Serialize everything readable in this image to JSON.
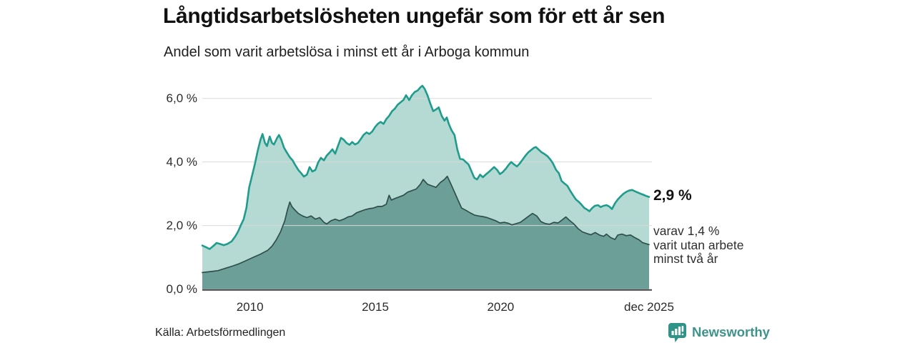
{
  "header": {
    "title": "Långtidsarbetslösheten ungefär som för ett år sen",
    "subtitle": "Andel som varit arbetslösa i minst ett år i Arboga kommun"
  },
  "annotations": {
    "total_value": "2,9 %",
    "subset_line1": "varav 1,4 %",
    "subset_line2": "varit utan arbete",
    "subset_line3": "minst två år"
  },
  "footer": {
    "source": "Källa: Arbetsförmedlingen",
    "brand": "Newsworthy",
    "brand_icon": "newsworthy-speech-bubble-bar-chart-icon"
  },
  "colors": {
    "accent_teal": "#1f9c8c",
    "light_fill": "#b5d9d3",
    "dark_fill": "#6d9f99",
    "dark_line": "#2f4f4b",
    "grid": "#d9d9d9",
    "axis_line": "#454545",
    "brand": "#3e948b",
    "text": "#111111"
  },
  "chart_data": {
    "type": "area",
    "title": "Långtidsarbetslösheten ungefär som för ett år sen",
    "subtitle": "Andel som varit arbetslösa i minst ett år i Arboga kommun",
    "unit": "%",
    "grid": true,
    "x_axis": {
      "min": 2008.1,
      "max": 2025.92,
      "ticks": [
        {
          "year": 2010,
          "label": "2010"
        },
        {
          "year": 2015,
          "label": "2015"
        },
        {
          "year": 2020,
          "label": "2020"
        },
        {
          "year": 2025.92,
          "label": "dec 2025"
        }
      ]
    },
    "y_axis": {
      "min": 0,
      "max": 6.5,
      "ticks": [
        {
          "value": 0,
          "label": "0,0 %"
        },
        {
          "value": 2,
          "label": "2,0 %"
        },
        {
          "value": 4,
          "label": "4,0 %"
        },
        {
          "value": 6,
          "label": "6,0 %"
        }
      ]
    },
    "series": [
      {
        "name": "Andel arbetslösa minst ett år",
        "end_label": "2,9 %",
        "line_color": "#1f9c8c",
        "fill_color": "#b5d9d3",
        "line_width": 2.6,
        "points": [
          [
            2008.1,
            1.37
          ],
          [
            2008.24,
            1.32
          ],
          [
            2008.39,
            1.26
          ],
          [
            2008.53,
            1.35
          ],
          [
            2008.67,
            1.45
          ],
          [
            2008.81,
            1.42
          ],
          [
            2008.95,
            1.38
          ],
          [
            2009.1,
            1.42
          ],
          [
            2009.27,
            1.5
          ],
          [
            2009.41,
            1.65
          ],
          [
            2009.52,
            1.8
          ],
          [
            2009.63,
            2.0
          ],
          [
            2009.75,
            2.2
          ],
          [
            2009.86,
            2.55
          ],
          [
            2009.97,
            3.2
          ],
          [
            2010.08,
            3.55
          ],
          [
            2010.2,
            3.95
          ],
          [
            2010.31,
            4.35
          ],
          [
            2010.42,
            4.7
          ],
          [
            2010.5,
            4.88
          ],
          [
            2010.6,
            4.6
          ],
          [
            2010.68,
            4.5
          ],
          [
            2010.79,
            4.8
          ],
          [
            2010.88,
            4.6
          ],
          [
            2010.96,
            4.55
          ],
          [
            2011.08,
            4.75
          ],
          [
            2011.16,
            4.85
          ],
          [
            2011.25,
            4.7
          ],
          [
            2011.36,
            4.45
          ],
          [
            2011.47,
            4.3
          ],
          [
            2011.59,
            4.15
          ],
          [
            2011.7,
            4.05
          ],
          [
            2011.81,
            3.9
          ],
          [
            2011.93,
            3.75
          ],
          [
            2012.04,
            3.65
          ],
          [
            2012.15,
            3.54
          ],
          [
            2012.27,
            3.6
          ],
          [
            2012.38,
            3.84
          ],
          [
            2012.49,
            3.7
          ],
          [
            2012.61,
            3.75
          ],
          [
            2012.72,
            3.98
          ],
          [
            2012.83,
            4.13
          ],
          [
            2012.95,
            4.05
          ],
          [
            2013.06,
            4.2
          ],
          [
            2013.17,
            4.29
          ],
          [
            2013.29,
            4.4
          ],
          [
            2013.4,
            4.26
          ],
          [
            2013.51,
            4.5
          ],
          [
            2013.63,
            4.76
          ],
          [
            2013.74,
            4.7
          ],
          [
            2013.85,
            4.6
          ],
          [
            2013.97,
            4.54
          ],
          [
            2014.08,
            4.63
          ],
          [
            2014.19,
            4.55
          ],
          [
            2014.31,
            4.6
          ],
          [
            2014.42,
            4.72
          ],
          [
            2014.53,
            4.85
          ],
          [
            2014.65,
            4.93
          ],
          [
            2014.76,
            4.88
          ],
          [
            2014.87,
            4.95
          ],
          [
            2014.99,
            5.1
          ],
          [
            2015.1,
            5.2
          ],
          [
            2015.21,
            5.26
          ],
          [
            2015.33,
            5.2
          ],
          [
            2015.44,
            5.35
          ],
          [
            2015.55,
            5.45
          ],
          [
            2015.67,
            5.6
          ],
          [
            2015.78,
            5.68
          ],
          [
            2015.89,
            5.8
          ],
          [
            2016.01,
            5.88
          ],
          [
            2016.12,
            5.95
          ],
          [
            2016.23,
            6.1
          ],
          [
            2016.35,
            5.95
          ],
          [
            2016.46,
            6.1
          ],
          [
            2016.57,
            6.2
          ],
          [
            2016.69,
            6.25
          ],
          [
            2016.8,
            6.35
          ],
          [
            2016.88,
            6.4
          ],
          [
            2016.97,
            6.3
          ],
          [
            2017.08,
            6.1
          ],
          [
            2017.19,
            5.85
          ],
          [
            2017.31,
            5.6
          ],
          [
            2017.42,
            5.65
          ],
          [
            2017.53,
            5.72
          ],
          [
            2017.65,
            5.45
          ],
          [
            2017.76,
            5.3
          ],
          [
            2017.85,
            5.4
          ],
          [
            2017.93,
            5.2
          ],
          [
            2018.04,
            5.0
          ],
          [
            2018.16,
            4.85
          ],
          [
            2018.27,
            4.4
          ],
          [
            2018.38,
            4.1
          ],
          [
            2018.5,
            4.08
          ],
          [
            2018.61,
            4.0
          ],
          [
            2018.72,
            3.92
          ],
          [
            2018.84,
            3.7
          ],
          [
            2018.95,
            3.5
          ],
          [
            2019.06,
            3.45
          ],
          [
            2019.18,
            3.6
          ],
          [
            2019.29,
            3.52
          ],
          [
            2019.4,
            3.6
          ],
          [
            2019.52,
            3.68
          ],
          [
            2019.63,
            3.76
          ],
          [
            2019.74,
            3.84
          ],
          [
            2019.86,
            3.75
          ],
          [
            2019.97,
            3.62
          ],
          [
            2020.08,
            3.68
          ],
          [
            2020.2,
            3.78
          ],
          [
            2020.31,
            3.9
          ],
          [
            2020.42,
            4.0
          ],
          [
            2020.54,
            3.92
          ],
          [
            2020.65,
            3.86
          ],
          [
            2020.76,
            3.95
          ],
          [
            2020.88,
            4.08
          ],
          [
            2020.99,
            4.2
          ],
          [
            2021.1,
            4.3
          ],
          [
            2021.22,
            4.38
          ],
          [
            2021.33,
            4.45
          ],
          [
            2021.41,
            4.47
          ],
          [
            2021.53,
            4.38
          ],
          [
            2021.64,
            4.3
          ],
          [
            2021.75,
            4.25
          ],
          [
            2021.87,
            4.18
          ],
          [
            2021.98,
            4.08
          ],
          [
            2022.09,
            3.95
          ],
          [
            2022.21,
            3.75
          ],
          [
            2022.32,
            3.65
          ],
          [
            2022.43,
            3.4
          ],
          [
            2022.55,
            3.32
          ],
          [
            2022.66,
            3.25
          ],
          [
            2022.77,
            3.1
          ],
          [
            2022.89,
            2.95
          ],
          [
            2023.0,
            2.82
          ],
          [
            2023.11,
            2.75
          ],
          [
            2023.23,
            2.65
          ],
          [
            2023.34,
            2.55
          ],
          [
            2023.45,
            2.5
          ],
          [
            2023.54,
            2.45
          ],
          [
            2023.65,
            2.55
          ],
          [
            2023.76,
            2.62
          ],
          [
            2023.88,
            2.64
          ],
          [
            2023.99,
            2.58
          ],
          [
            2024.1,
            2.62
          ],
          [
            2024.22,
            2.64
          ],
          [
            2024.33,
            2.6
          ],
          [
            2024.44,
            2.52
          ],
          [
            2024.56,
            2.7
          ],
          [
            2024.67,
            2.82
          ],
          [
            2024.79,
            2.92
          ],
          [
            2024.9,
            3.0
          ],
          [
            2025.01,
            3.06
          ],
          [
            2025.12,
            3.1
          ],
          [
            2025.24,
            3.12
          ],
          [
            2025.35,
            3.08
          ],
          [
            2025.46,
            3.04
          ],
          [
            2025.58,
            3.0
          ],
          [
            2025.69,
            2.97
          ],
          [
            2025.8,
            2.93
          ],
          [
            2025.92,
            2.9
          ]
        ]
      },
      {
        "name": "varav utan arbete minst två år",
        "end_label": "1,4 %",
        "line_color": "#2f4f4b",
        "fill_color": "#6d9f99",
        "line_width": 1.7,
        "points": [
          [
            2008.1,
            0.52
          ],
          [
            2008.44,
            0.55
          ],
          [
            2008.73,
            0.58
          ],
          [
            2009.01,
            0.65
          ],
          [
            2009.29,
            0.72
          ],
          [
            2009.58,
            0.8
          ],
          [
            2009.86,
            0.9
          ],
          [
            2010.14,
            1.0
          ],
          [
            2010.42,
            1.1
          ],
          [
            2010.71,
            1.22
          ],
          [
            2010.88,
            1.35
          ],
          [
            2011.05,
            1.55
          ],
          [
            2011.22,
            1.8
          ],
          [
            2011.39,
            2.15
          ],
          [
            2011.5,
            2.5
          ],
          [
            2011.59,
            2.74
          ],
          [
            2011.67,
            2.6
          ],
          [
            2011.78,
            2.5
          ],
          [
            2011.93,
            2.38
          ],
          [
            2012.1,
            2.3
          ],
          [
            2012.27,
            2.25
          ],
          [
            2012.44,
            2.3
          ],
          [
            2012.61,
            2.2
          ],
          [
            2012.78,
            2.25
          ],
          [
            2012.95,
            2.1
          ],
          [
            2013.06,
            2.05
          ],
          [
            2013.23,
            2.15
          ],
          [
            2013.4,
            2.2
          ],
          [
            2013.57,
            2.15
          ],
          [
            2013.74,
            2.2
          ],
          [
            2013.91,
            2.27
          ],
          [
            2014.08,
            2.3
          ],
          [
            2014.25,
            2.4
          ],
          [
            2014.42,
            2.45
          ],
          [
            2014.59,
            2.5
          ],
          [
            2014.76,
            2.53
          ],
          [
            2014.93,
            2.55
          ],
          [
            2015.1,
            2.6
          ],
          [
            2015.27,
            2.6
          ],
          [
            2015.44,
            2.67
          ],
          [
            2015.55,
            2.95
          ],
          [
            2015.64,
            2.8
          ],
          [
            2015.78,
            2.85
          ],
          [
            2015.95,
            2.9
          ],
          [
            2016.12,
            2.95
          ],
          [
            2016.29,
            3.05
          ],
          [
            2016.46,
            3.1
          ],
          [
            2016.63,
            3.15
          ],
          [
            2016.8,
            3.3
          ],
          [
            2016.91,
            3.45
          ],
          [
            2017.08,
            3.3
          ],
          [
            2017.25,
            3.25
          ],
          [
            2017.42,
            3.2
          ],
          [
            2017.59,
            3.35
          ],
          [
            2017.76,
            3.45
          ],
          [
            2017.87,
            3.55
          ],
          [
            2018.02,
            3.3
          ],
          [
            2018.16,
            3.05
          ],
          [
            2018.3,
            2.8
          ],
          [
            2018.44,
            2.55
          ],
          [
            2018.61,
            2.48
          ],
          [
            2018.78,
            2.4
          ],
          [
            2018.95,
            2.33
          ],
          [
            2019.12,
            2.3
          ],
          [
            2019.29,
            2.28
          ],
          [
            2019.46,
            2.25
          ],
          [
            2019.63,
            2.2
          ],
          [
            2019.8,
            2.15
          ],
          [
            2019.97,
            2.08
          ],
          [
            2020.14,
            2.1
          ],
          [
            2020.31,
            2.07
          ],
          [
            2020.45,
            2.02
          ],
          [
            2020.62,
            2.06
          ],
          [
            2020.79,
            2.1
          ],
          [
            2020.96,
            2.2
          ],
          [
            2021.13,
            2.3
          ],
          [
            2021.27,
            2.38
          ],
          [
            2021.44,
            2.3
          ],
          [
            2021.61,
            2.12
          ],
          [
            2021.78,
            2.06
          ],
          [
            2021.95,
            2.04
          ],
          [
            2022.12,
            2.1
          ],
          [
            2022.29,
            2.08
          ],
          [
            2022.46,
            2.18
          ],
          [
            2022.6,
            2.27
          ],
          [
            2022.75,
            2.16
          ],
          [
            2022.92,
            2.05
          ],
          [
            2023.09,
            1.9
          ],
          [
            2023.26,
            1.8
          ],
          [
            2023.43,
            1.75
          ],
          [
            2023.6,
            1.71
          ],
          [
            2023.77,
            1.78
          ],
          [
            2023.94,
            1.7
          ],
          [
            2024.11,
            1.66
          ],
          [
            2024.22,
            1.73
          ],
          [
            2024.39,
            1.62
          ],
          [
            2024.56,
            1.56
          ],
          [
            2024.67,
            1.7
          ],
          [
            2024.84,
            1.73
          ],
          [
            2025.01,
            1.68
          ],
          [
            2025.18,
            1.7
          ],
          [
            2025.35,
            1.62
          ],
          [
            2025.52,
            1.55
          ],
          [
            2025.66,
            1.46
          ],
          [
            2025.92,
            1.4
          ]
        ]
      }
    ]
  }
}
